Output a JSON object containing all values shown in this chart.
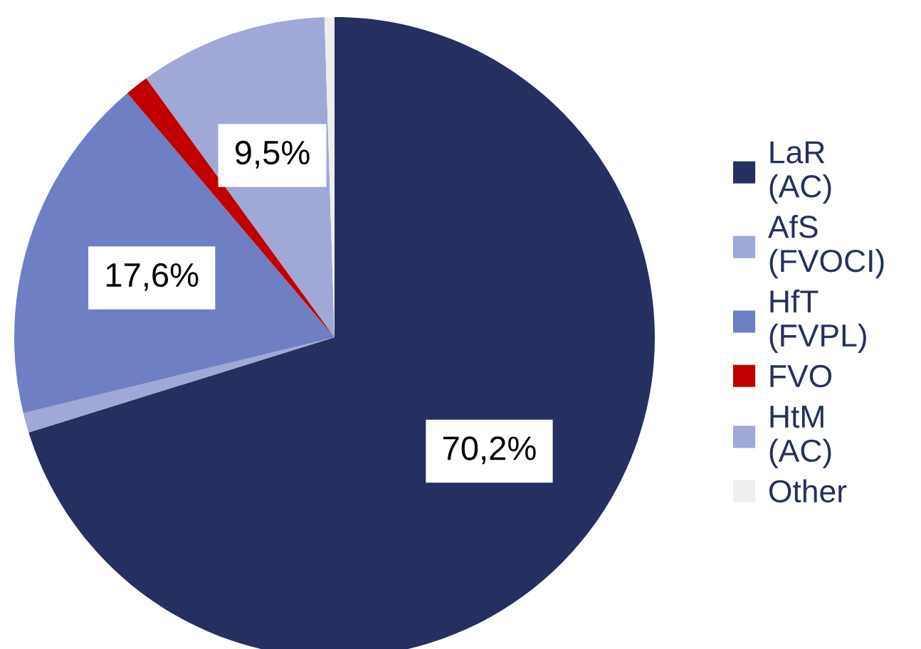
{
  "chart_data": {
    "type": "pie",
    "categories": [
      "LaR (AC)",
      "AfS (FVOCI)",
      "HfT (FVPL)",
      "FVO",
      "HtM (AC)",
      "Other"
    ],
    "values": [
      70.2,
      1.0,
      17.6,
      1.2,
      9.5,
      0.5
    ],
    "colors": [
      "#253060",
      "#9fa8d6",
      "#6e7fc4",
      "#c00000",
      "#9fa8d6",
      "#eeeeee"
    ],
    "value_labels": [
      "70,2%",
      null,
      "17,6%",
      null,
      "9,5%",
      null
    ],
    "legend": "right"
  }
}
